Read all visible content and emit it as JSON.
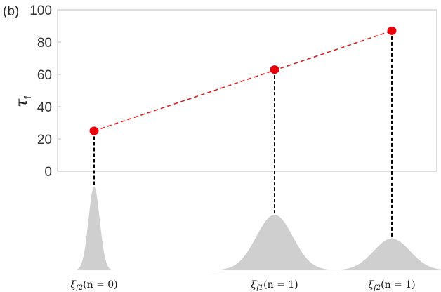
{
  "chart_data": {
    "type": "scatter",
    "panel_label": "(b)",
    "ylabel": "τ",
    "ylabel_subscript": "f",
    "ylim": [
      0,
      100
    ],
    "yticks": [
      0,
      20,
      40,
      60,
      80,
      100
    ],
    "grid": false,
    "series": [
      {
        "points": [
          {
            "label": "ξf2(n = 0)",
            "label_symbol": "ξ",
            "label_sub": "f2",
            "label_arg": "(n = 0)",
            "y": 25
          },
          {
            "label": "ξf1(n = 1)",
            "label_symbol": "ξ",
            "label_sub": "f1",
            "label_arg": "(n = 1)",
            "y": 63
          },
          {
            "label": "ξf2(n = 1)",
            "label_symbol": "ξ",
            "label_sub": "f2",
            "label_arg": "(n = 1)",
            "y": 87
          }
        ]
      }
    ],
    "colors": {
      "marker": "#e8000b",
      "trend_line": "#e02020",
      "drop_line": "#000000",
      "distribution": "#cfcfcf",
      "axes": "#bdbdbd"
    }
  }
}
